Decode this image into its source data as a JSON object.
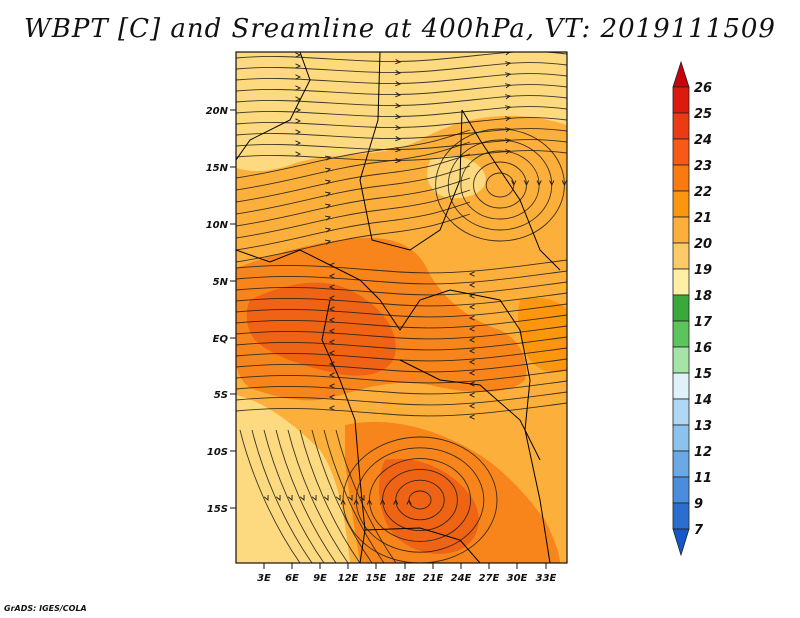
{
  "title": "WBPT [C] and Sreamline at 400hPa, VT: 2019111509",
  "credit": "GrADS: IGES/COLA",
  "map": {
    "variable": "Wet-bulb potential temperature",
    "units": "C",
    "level": "400hPa",
    "valid_time": "2019111509",
    "lon_ticks": [
      "3E",
      "6E",
      "9E",
      "12E",
      "15E",
      "18E",
      "21E",
      "24E",
      "27E",
      "30E",
      "33E"
    ],
    "lat_ticks": [
      "20N",
      "15N",
      "10N",
      "5N",
      "EQ",
      "5S",
      "10S",
      "15S"
    ],
    "colors": {
      "cool": "#fdda7f",
      "warm": "#fcb03b",
      "hot": "#f7851c",
      "hotter": "#ee6414",
      "streamline": "#1a1a1a"
    }
  },
  "colorbar": {
    "labels": [
      "26",
      "25",
      "24",
      "23",
      "22",
      "21",
      "20",
      "19",
      "18",
      "17",
      "16",
      "15",
      "14",
      "13",
      "12",
      "11",
      "9",
      "7"
    ],
    "colors": [
      "#c9000d",
      "#dc1a10",
      "#ec3a14",
      "#f65a16",
      "#fa7a12",
      "#fc960e",
      "#fcb03b",
      "#fdca6a",
      "#fdf0a6",
      "#3aa83a",
      "#5cc45c",
      "#a6e3a6",
      "#e0f2f7",
      "#b0d8f4",
      "#8cc2ee",
      "#6aa8e6",
      "#4b8ddc",
      "#2c6ed0",
      "#1457c8"
    ]
  }
}
